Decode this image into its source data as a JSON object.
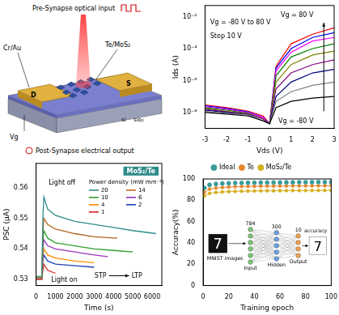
{
  "schematic": {
    "top": "Pre-Synapse optical input",
    "electrode": "Cr/Au",
    "channel": "Te/MoS₂",
    "drain": "D",
    "source": "S",
    "gate": "Vg",
    "substrate": "si",
    "oxide": "sio₂",
    "bottom": "Post-Synapse electrical output"
  },
  "network_inset": {
    "image_label": "MNIST images",
    "digit": 7,
    "result": "accuracy",
    "layers": [
      {
        "size": 784,
        "name": "Input"
      },
      {
        "size": 300,
        "name": "Hidden"
      },
      {
        "size": 10,
        "name": "Output"
      }
    ]
  },
  "chart_data": [
    {
      "type": "line",
      "x_label": "Vds (V)",
      "y_label": "Ids (A)",
      "log": "y",
      "grid": false,
      "annotations": [
        "Vg = -80 V to 80 V",
        "Step 10 V",
        "Vg = 80 V",
        "Vg = -80 V"
      ],
      "x": [
        -3,
        -2,
        -1,
        -0.3,
        0,
        0.3,
        1,
        2,
        3
      ],
      "xlim": [
        -3,
        3
      ],
      "xticks": [
        -3,
        -2,
        -1,
        0,
        1,
        2,
        3
      ],
      "ylim": [
        1e-09,
        0.05
      ],
      "yticks": [
        {
          "value": 1e-08,
          "label": "10⁻⁸"
        },
        {
          "value": 1e-06,
          "label": "10⁻⁶"
        },
        {
          "value": 0.0001,
          "label": "10⁻⁴"
        },
        {
          "value": 0.01,
          "label": "10⁻²"
        }
      ],
      "series": [
        {
          "color": "#000000",
          "values": [
            1e-08,
            8e-09,
            6e-09,
            3e-09,
            2e-09,
            2e-08,
            5e-08,
            8e-08,
            1e-07
          ]
        },
        {
          "color": "#808080",
          "values": [
            1.2e-08,
            9e-09,
            7e-09,
            3e-09,
            2e-09,
            5e-08,
            2e-07,
            5e-07,
            8e-07
          ]
        },
        {
          "color": "#000080",
          "values": [
            1.4e-08,
            1e-08,
            7e-09,
            3e-09,
            2e-09,
            1e-07,
            8e-07,
            3e-06,
            5e-06
          ]
        },
        {
          "color": "#800080",
          "values": [
            1.6e-08,
            1.1e-08,
            8e-09,
            4e-09,
            2e-09,
            3e-07,
            3e-06,
            1e-05,
            2e-05
          ]
        },
        {
          "color": "#808000",
          "values": [
            1.8e-08,
            1.2e-08,
            8e-09,
            4e-09,
            2e-09,
            8e-07,
            1e-05,
            4e-05,
            7e-05
          ]
        },
        {
          "color": "#008000",
          "values": [
            2e-08,
            1.4e-08,
            9e-09,
            4e-09,
            2e-09,
            2e-06,
            3e-05,
            0.0001,
            0.0002
          ]
        },
        {
          "color": "#ff00ff",
          "values": [
            2.3e-08,
            1.6e-08,
            1e-08,
            5e-09,
            2e-09,
            4e-06,
            6e-05,
            0.0003,
            0.0005
          ]
        },
        {
          "color": "#0000ff",
          "values": [
            2.6e-08,
            1.8e-08,
            1.1e-08,
            5e-09,
            2e-09,
            6e-06,
            0.0001,
            0.0005,
            0.001
          ]
        },
        {
          "color": "#ff0000",
          "values": [
            3e-08,
            2e-08,
            1.2e-08,
            6e-09,
            2e-09,
            8e-06,
            0.0002,
            0.0008,
            0.002
          ]
        }
      ]
    },
    {
      "type": "line",
      "x_label": "Time (s)",
      "y_label": "PSC (μA)",
      "grid": false,
      "legend": "upper right",
      "subtitle": "MoS₂/Te",
      "legend_title": "Power density (mW mm⁻²)",
      "annotations": [
        "Light off",
        "Light on",
        "STP",
        "LTP"
      ],
      "xlim": [
        0,
        6500
      ],
      "xticks": [
        0,
        1000,
        2000,
        3000,
        4000,
        5000,
        6000
      ],
      "ylim": [
        0.528,
        0.568
      ],
      "yticks": [
        0.53,
        0.54,
        0.55,
        0.56
      ],
      "series": [
        {
          "name": "20",
          "color": "#2e8b8b",
          "x": [
            0,
            300,
            350,
            400,
            600,
            1000,
            2000,
            3000,
            4000,
            5000,
            6200
          ],
          "values": [
            0.531,
            0.531,
            0.55,
            0.557,
            0.553,
            0.551,
            0.549,
            0.548,
            0.547,
            0.546,
            0.545
          ]
        },
        {
          "name": "14",
          "color": "#b5651d",
          "x": [
            0,
            300,
            350,
            400,
            600,
            1000,
            2000,
            3000,
            4200
          ],
          "values": [
            0.5305,
            0.5305,
            0.545,
            0.55,
            0.548,
            0.5465,
            0.545,
            0.544,
            0.5435
          ]
        },
        {
          "name": "10",
          "color": "#2ca02c",
          "x": [
            0,
            300,
            350,
            400,
            600,
            1000,
            2000,
            3000,
            4000,
            5000
          ],
          "values": [
            0.5305,
            0.5305,
            0.542,
            0.546,
            0.5435,
            0.542,
            0.541,
            0.54,
            0.5395,
            0.539
          ]
        },
        {
          "name": "6",
          "color": "#9b30c0",
          "x": [
            0,
            300,
            350,
            400,
            600,
            1000,
            2000,
            3000,
            3700
          ],
          "values": [
            0.5303,
            0.5303,
            0.54,
            0.543,
            0.541,
            0.54,
            0.539,
            0.538,
            0.5375
          ]
        },
        {
          "name": "4",
          "color": "#ff8c00",
          "x": [
            0,
            300,
            350,
            400,
            600,
            1000,
            2000,
            3000
          ],
          "values": [
            0.5302,
            0.5302,
            0.538,
            0.54,
            0.538,
            0.537,
            0.536,
            0.5355
          ]
        },
        {
          "name": "2",
          "color": "#1f3fbf",
          "x": [
            0,
            300,
            350,
            400,
            600,
            1000,
            2000,
            3000
          ],
          "values": [
            0.5301,
            0.5301,
            0.536,
            0.538,
            0.536,
            0.535,
            0.5345,
            0.534
          ]
        },
        {
          "name": "1",
          "color": "#e02020",
          "x": [
            0,
            300,
            350,
            400,
            600,
            1000
          ],
          "values": [
            0.53,
            0.53,
            0.533,
            0.535,
            0.533,
            0.532
          ]
        }
      ]
    },
    {
      "type": "line",
      "x_label": "Training epoch",
      "y_label": "Accuracy(%)",
      "grid": false,
      "legend": "top",
      "x": [
        1,
        5,
        10,
        15,
        20,
        25,
        30,
        35,
        40,
        45,
        50,
        55,
        60,
        65,
        70,
        75,
        80,
        85,
        90,
        95,
        100
      ],
      "xlim": [
        0,
        100
      ],
      "xticks": [
        0,
        20,
        40,
        60,
        80,
        100
      ],
      "ylim": [
        0,
        100
      ],
      "yticks": [
        0,
        20,
        40,
        60,
        80,
        100
      ],
      "series": [
        {
          "name": "Ideal",
          "color": "#3a9a9a",
          "marker": "circle",
          "line_style": "none",
          "values": [
            91.5,
            94.5,
            95.3,
            95.7,
            96,
            96.2,
            96.3,
            96.4,
            96.5,
            96.6,
            96.6,
            96.7,
            96.7,
            96.8,
            96.8,
            96.9,
            96.9,
            96.9,
            97,
            97,
            97
          ]
        },
        {
          "name": "Te",
          "color": "#e8872a",
          "marker": "circle",
          "line_style": "solid",
          "values": [
            87.5,
            90.5,
            91.5,
            92,
            92.4,
            92.7,
            92.9,
            93,
            93.1,
            93.2,
            93.3,
            93.3,
            93.4,
            93.4,
            93.5,
            93.5,
            93.5,
            93.6,
            93.6,
            93.6,
            93.7
          ]
        },
        {
          "name": "MoS₂/Te",
          "color": "#d4b020",
          "marker": "circle",
          "line_style": "solid",
          "values": [
            84,
            86.5,
            87.3,
            87.8,
            88.1,
            88.3,
            88.5,
            88.6,
            88.7,
            88.8,
            88.9,
            88.9,
            89,
            89,
            89.1,
            89.1,
            89.1,
            89.2,
            89.2,
            89.2,
            89.3
          ]
        }
      ]
    }
  ]
}
